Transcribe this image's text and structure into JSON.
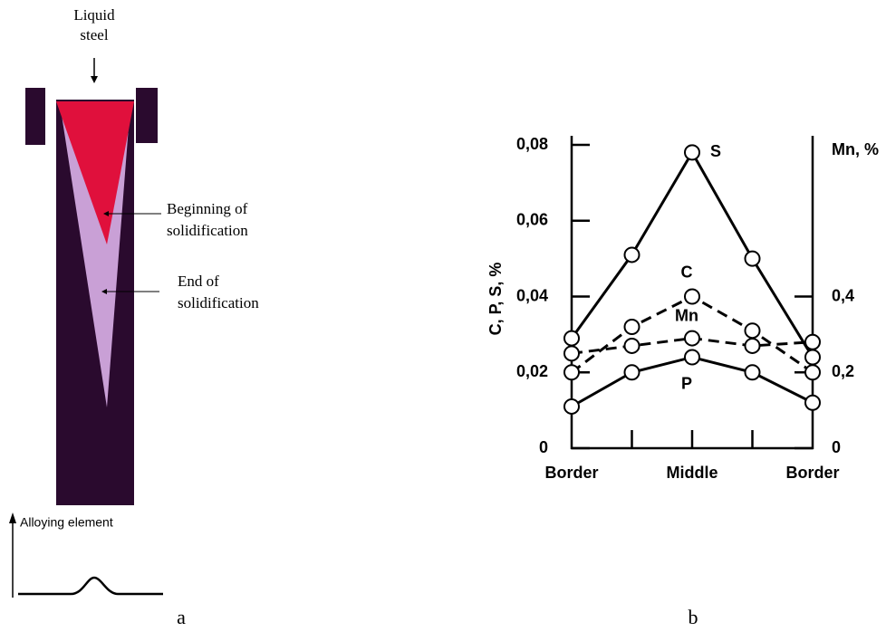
{
  "diagram": {
    "liquid_steel": [
      "Liquid",
      "steel"
    ],
    "beginning": [
      "Beginning of",
      "solidification"
    ],
    "end": [
      "End of",
      "solidification"
    ],
    "alloying_axis": "Alloying element"
  },
  "panel_labels": [
    "a",
    "b"
  ],
  "chart_data": {
    "type": "line",
    "ylabel": "C, P, S, %",
    "y2label": "Mn, %",
    "categories": [
      "Border",
      null,
      "Middle",
      null,
      "Border"
    ],
    "ylim": [
      0,
      0.08
    ],
    "yticks": [
      0,
      {
        "value": 0.02,
        "label": "0,02"
      },
      {
        "value": 0.04,
        "label": "0,04"
      },
      {
        "value": 0.06,
        "label": "0,06"
      },
      {
        "value": 0.08,
        "label": "0,08"
      }
    ],
    "y2lim": [
      0,
      0.8
    ],
    "y2ticks": [
      0,
      {
        "value": 0.2,
        "label": "0,2"
      },
      {
        "value": 0.4,
        "label": "0,4"
      }
    ],
    "series": [
      {
        "name": "S",
        "color": "#000000",
        "dashed": false,
        "values": [
          0.029,
          0.051,
          0.078,
          0.05,
          0.024
        ]
      },
      {
        "name": "C",
        "color": "#000000",
        "dashed": true,
        "values": [
          0.02,
          0.032,
          0.04,
          0.031,
          0.02
        ]
      },
      {
        "name": "Mn",
        "color": "#000000",
        "dashed": true,
        "axis": "y2",
        "values": [
          0.25,
          0.27,
          0.29,
          0.27,
          0.28
        ]
      },
      {
        "name": "P",
        "color": "#000000",
        "dashed": false,
        "values": [
          0.011,
          0.02,
          0.024,
          0.02,
          0.012
        ]
      }
    ]
  }
}
